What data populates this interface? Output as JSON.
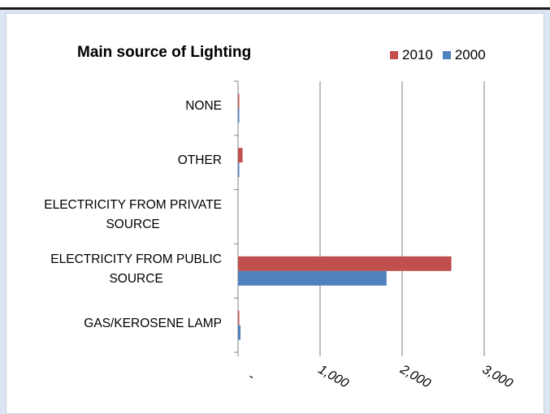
{
  "chart_data": {
    "type": "bar",
    "orientation": "horizontal",
    "title": "Main source of Lighting",
    "categories": [
      "NONE",
      "OTHER",
      "ELECTRICITY FROM PRIVATE SOURCE",
      "ELECTRICITY FROM PUBLIC SOURCE",
      "GAS/KEROSENE LAMP"
    ],
    "category_lines": [
      [
        "NONE"
      ],
      [
        "OTHER"
      ],
      [
        "ELECTRICITY FROM PRIVATE",
        "SOURCE"
      ],
      [
        "ELECTRICITY FROM PUBLIC",
        "SOURCE"
      ],
      [
        "GAS/KEROSENE LAMP"
      ]
    ],
    "series": [
      {
        "name": "2010",
        "color": "#c0504d",
        "values": [
          10,
          55,
          0,
          2600,
          10
        ]
      },
      {
        "name": "2000",
        "color": "#4f81bd",
        "values": [
          5,
          15,
          0,
          1810,
          30
        ]
      }
    ],
    "xlim": [
      0,
      3000
    ],
    "xticks": [
      0,
      1000,
      2000,
      3000
    ],
    "xtick_labels": [
      "-",
      "1,000",
      "2,000",
      "3,000"
    ],
    "grid": true,
    "legend_position": "top-right"
  }
}
